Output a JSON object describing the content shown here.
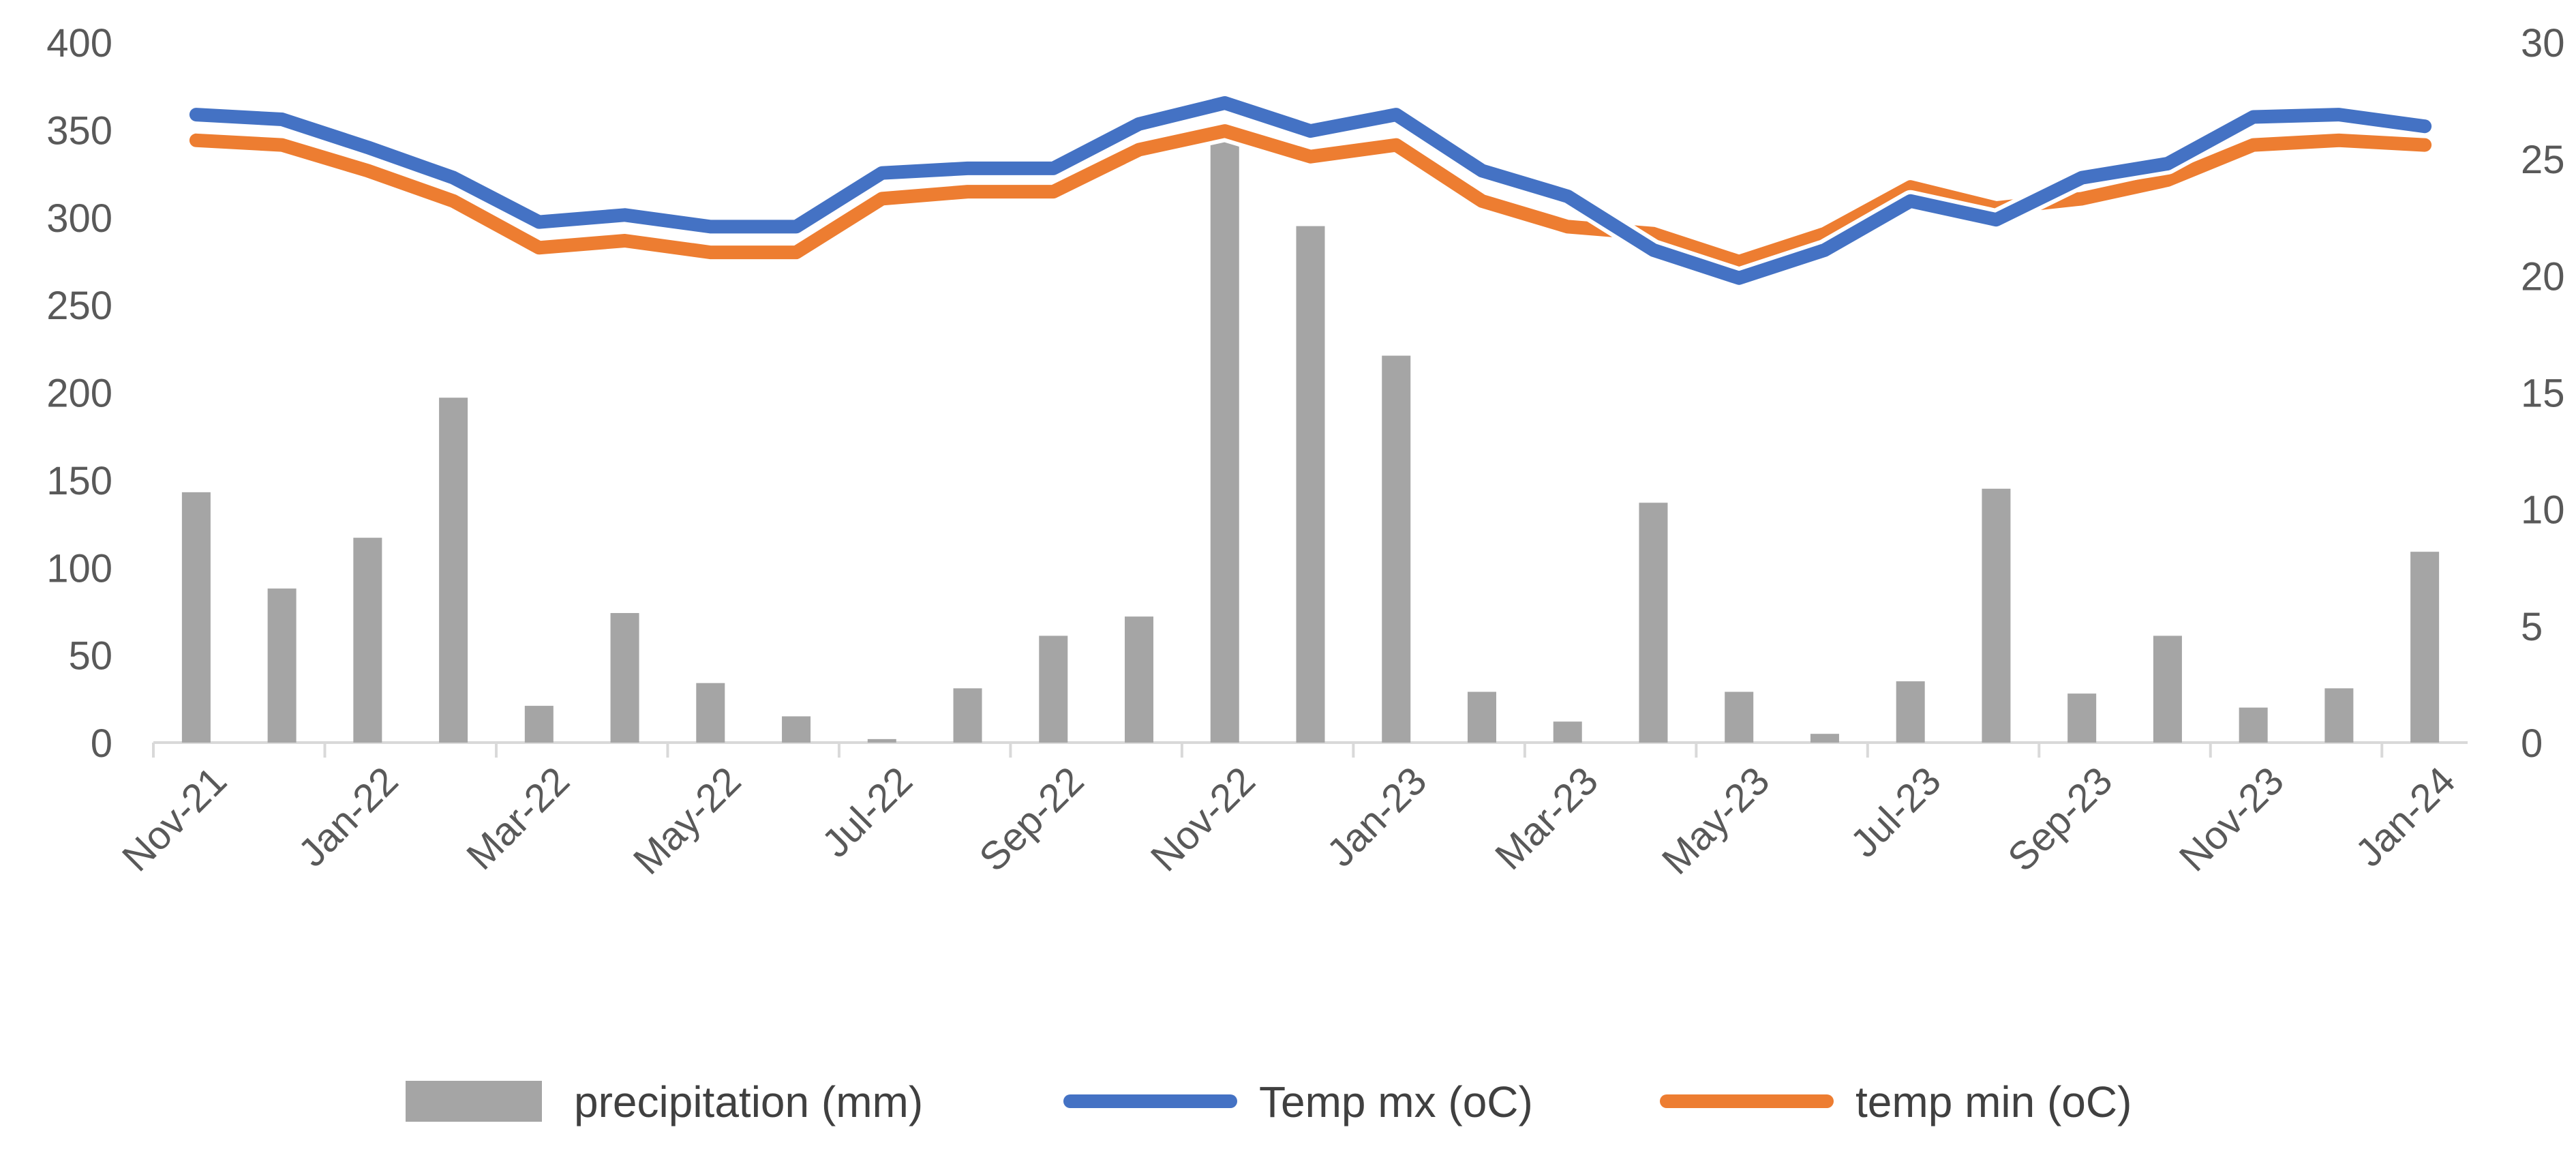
{
  "chart_data": {
    "type": "bar-line-combo",
    "title": "",
    "xlabel": "",
    "ylabel": "",
    "ylabel_right": "",
    "ylim": [
      0,
      400
    ],
    "ylim_right": [
      0,
      30
    ],
    "yticks": [
      "0",
      "50",
      "100",
      "150",
      "200",
      "250",
      "300",
      "350",
      "400"
    ],
    "yticks_right": [
      "0",
      "5",
      "10",
      "15",
      "20",
      "25",
      "30"
    ],
    "grid": false,
    "legend_position": "bottom",
    "categories": [
      "Nov-21",
      "Dec-21",
      "Jan-22",
      "Feb-22",
      "Mar-22",
      "Apr-22",
      "May-22",
      "Jun-22",
      "Jul-22",
      "Aug-22",
      "Sep-22",
      "Oct-22",
      "Nov-22",
      "Dec-22",
      "Jan-23",
      "Feb-23",
      "Mar-23",
      "Apr-23",
      "May-23",
      "Jun-23",
      "Jul-23",
      "Aug-23",
      "Sep-23",
      "Oct-23",
      "Nov-23",
      "Dec-23",
      "Jan-24"
    ],
    "tick_labels": [
      "Nov-21",
      "Jan-22",
      "Mar-22",
      "May-22",
      "Jul-22",
      "Sep-22",
      "Nov-22",
      "Jan-23",
      "Mar-23",
      "May-23",
      "Jul-23",
      "Sep-23",
      "Nov-23",
      "Jan-24"
    ],
    "series": [
      {
        "name": "precipitation (mm)",
        "type": "bar",
        "axis": "left",
        "color": "#a5a5a5",
        "values": [
          143,
          88,
          117,
          197,
          21,
          74,
          34,
          15,
          2,
          31,
          61,
          72,
          353,
          295,
          221,
          29,
          12,
          137,
          29,
          5,
          35,
          145,
          28,
          61,
          20,
          31,
          109
        ]
      },
      {
        "name": "Temp mx (oC)",
        "type": "line",
        "axis": "right",
        "color": "#4472c4",
        "values": [
          26.9,
          26.7,
          25.5,
          24.2,
          22.3,
          22.6,
          22.1,
          22.1,
          24.4,
          24.6,
          24.6,
          26.5,
          27.4,
          26.2,
          26.9,
          24.5,
          23.4,
          21.1,
          19.9,
          21.1,
          23.2,
          22.4,
          24.2,
          24.8,
          26.8,
          26.9,
          26.4
        ]
      },
      {
        "name": "temp min (oC)",
        "type": "line",
        "axis": "right",
        "color": "#ed7d31",
        "values": [
          25.8,
          25.6,
          24.5,
          23.2,
          21.2,
          21.5,
          21.0,
          21.0,
          23.3,
          23.6,
          23.6,
          25.4,
          26.2,
          25.1,
          25.6,
          23.2,
          22.1,
          21.8,
          20.6,
          21.8,
          23.8,
          22.9,
          23.3,
          24.1,
          25.6,
          25.8,
          25.6
        ]
      }
    ]
  }
}
